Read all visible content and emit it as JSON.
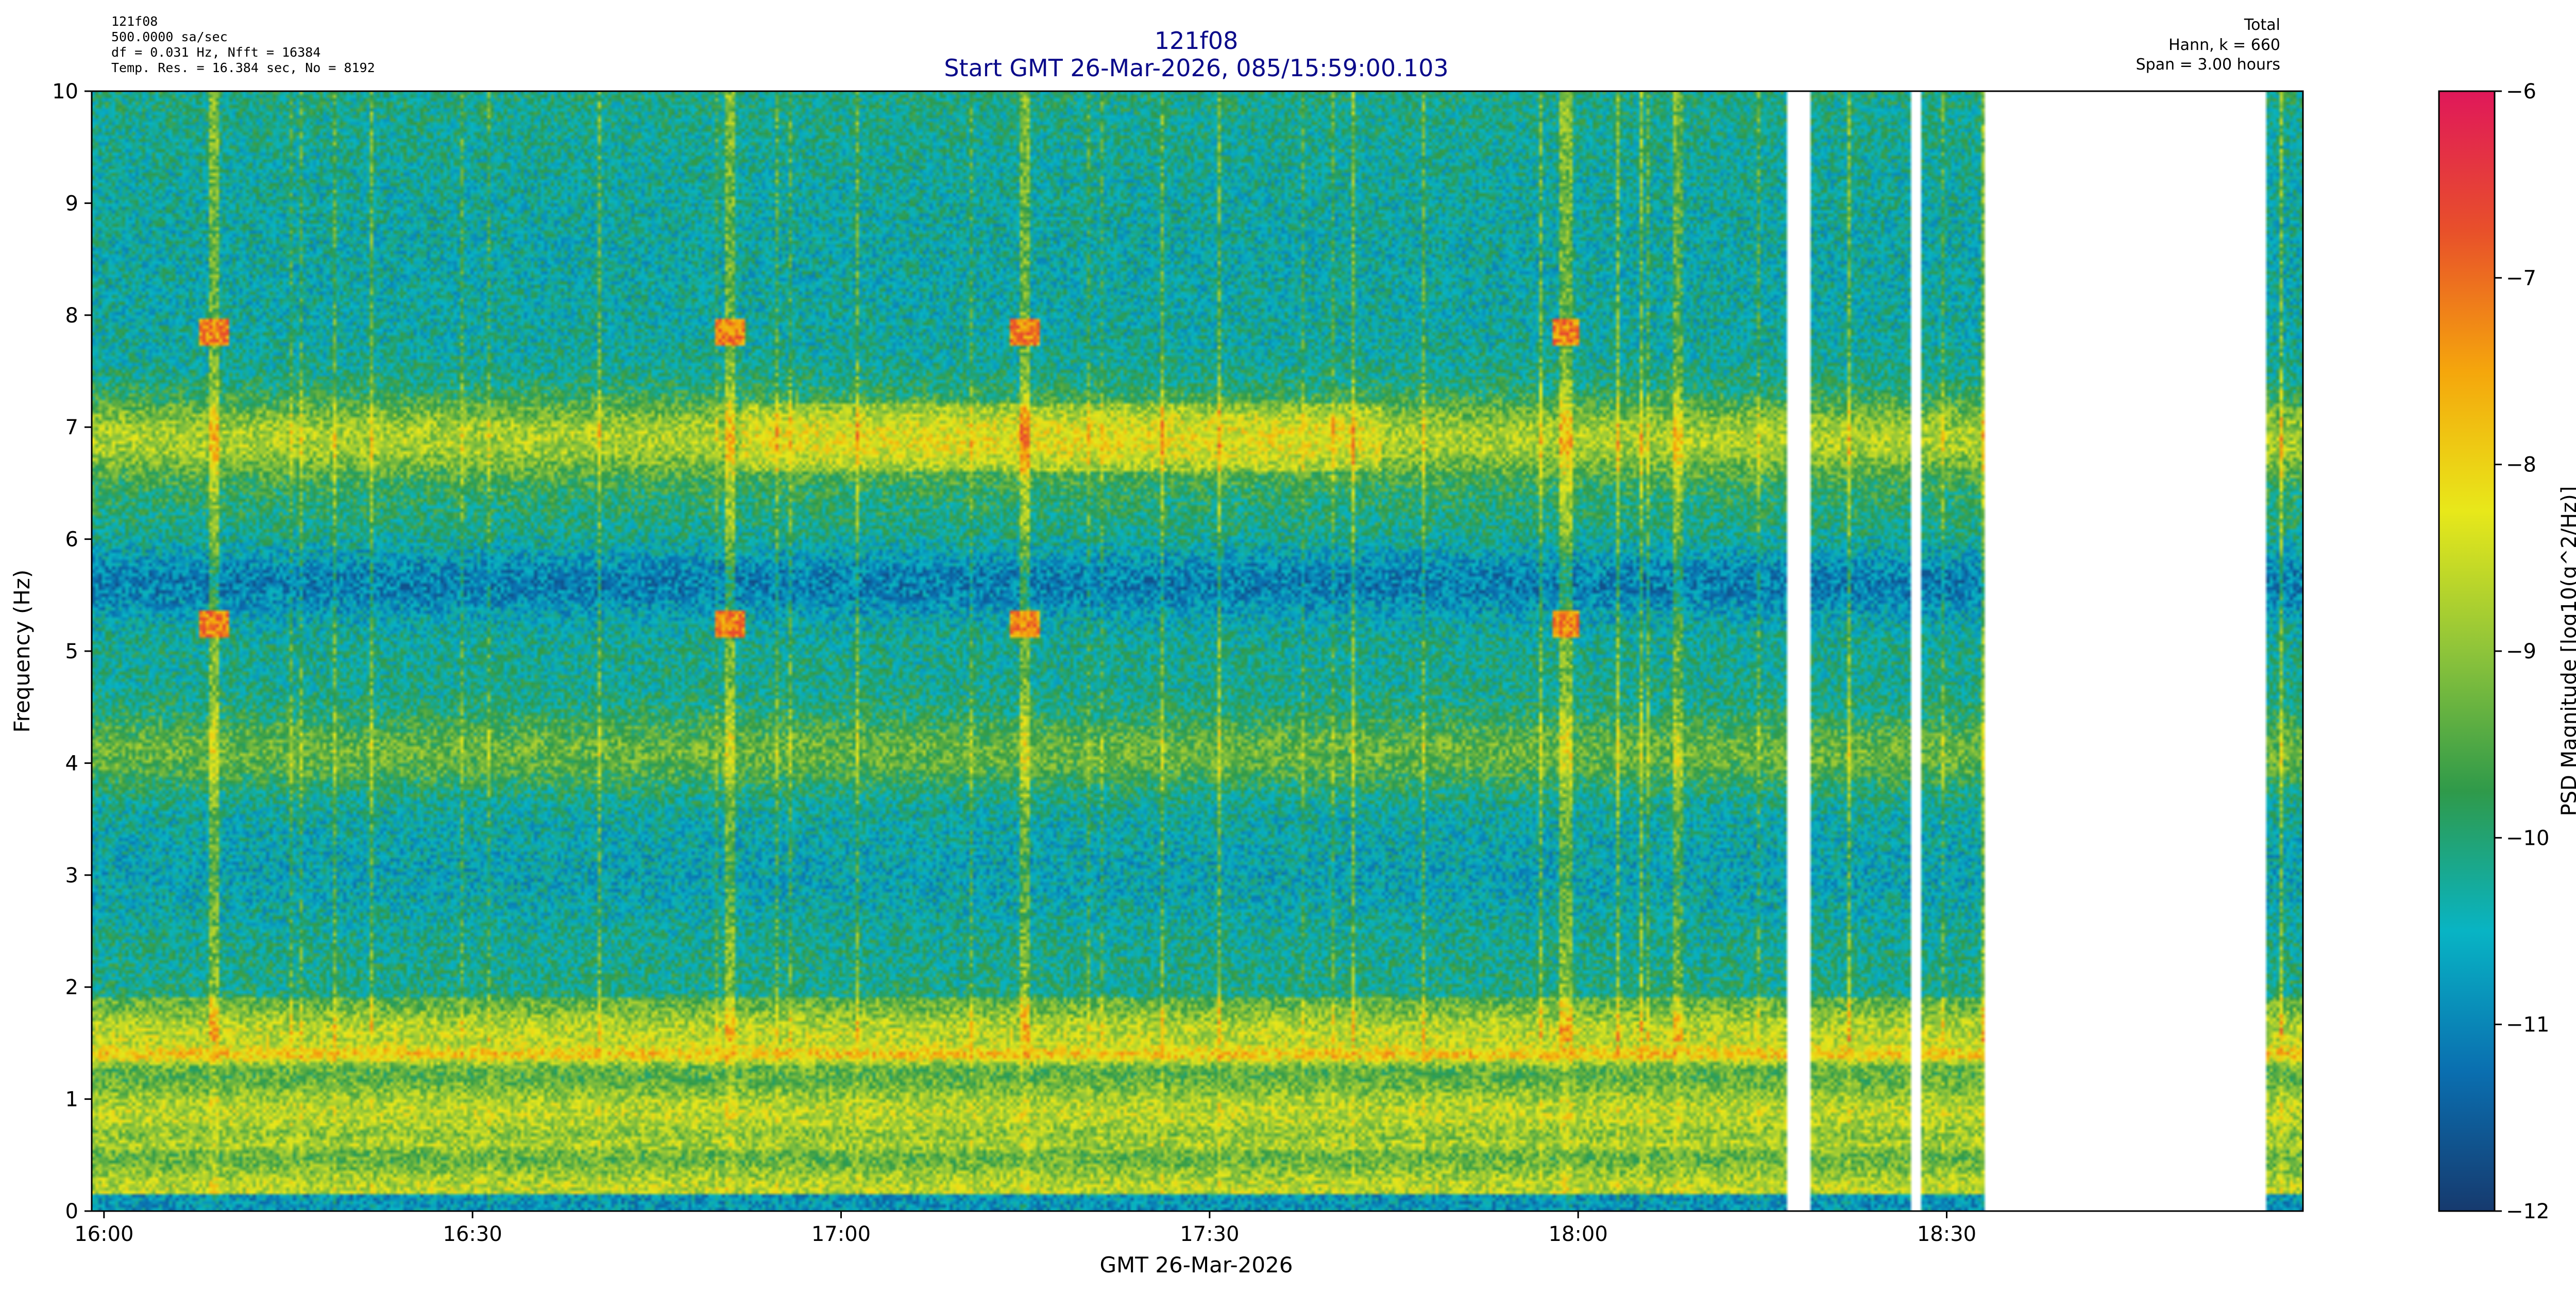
{
  "chart_data": {
    "type": "heatmap",
    "title": "121f08",
    "subtitle": "Start GMT 26-Mar-2026, 085/15:59:00.103",
    "header_left": [
      "121f08",
      "500.0000 sa/sec",
      "df = 0.031 Hz,  Nfft = 16384",
      "Temp. Res. = 16.384 sec, No = 8192"
    ],
    "header_right": [
      "Total",
      "Hann, k = 660",
      "Span = 3.00 hours"
    ],
    "xlabel": "GMT 26-Mar-2026",
    "ylabel": "Frequency (Hz)",
    "colorbar_label": "PSD Magnitude [log10(g^2/Hz)]",
    "x_ticks": [
      "16:00",
      "16:30",
      "17:00",
      "17:30",
      "18:00",
      "18:30"
    ],
    "x_tick_minutes": [
      0,
      30,
      60,
      90,
      120,
      150
    ],
    "x_range_minutes": [
      -1,
      179
    ],
    "y_ticks": [
      "0",
      "1",
      "2",
      "3",
      "4",
      "5",
      "6",
      "7",
      "8",
      "9",
      "10"
    ],
    "ylim": [
      0,
      10
    ],
    "color_ticks": [
      "−6",
      "−7",
      "−8",
      "−9",
      "−10",
      "−11",
      "−12"
    ],
    "clim": [
      -12,
      -6
    ],
    "colormap": [
      "#163a6e",
      "#0a6fb0",
      "#08b4c4",
      "#2f9a4a",
      "#8ec43a",
      "#e8e81a",
      "#f5a60c",
      "#e8502a",
      "#e0185a"
    ],
    "data_gaps_minutes": [
      [
        137,
        139
      ],
      [
        147,
        148
      ],
      [
        153,
        176
      ]
    ],
    "spectral_bands": [
      {
        "freq_hz": 1.4,
        "level": -7.7,
        "note": "persistent strong line"
      },
      {
        "freq_hz": 6.9,
        "level": -8.6,
        "note": "broad band, strongest 16:52–17:43"
      },
      {
        "freq_hz": 4.1,
        "level": -9.2
      },
      {
        "freq_hz": 0.6,
        "level": -8.7
      },
      {
        "freq_hz": 5.6,
        "level": -11.2,
        "note": "quiet band"
      },
      {
        "freq_hz": 3.0,
        "level": -10.6
      }
    ],
    "transients": [
      {
        "time": "16:09",
        "freq_hz": [
          7.85,
          5.25
        ]
      },
      {
        "time": "16:51",
        "freq_hz": [
          7.85,
          5.25
        ]
      },
      {
        "time": "17:15",
        "freq_hz": [
          7.85,
          5.25
        ]
      },
      {
        "time": "17:59",
        "freq_hz": [
          7.85,
          5.25
        ]
      }
    ]
  }
}
